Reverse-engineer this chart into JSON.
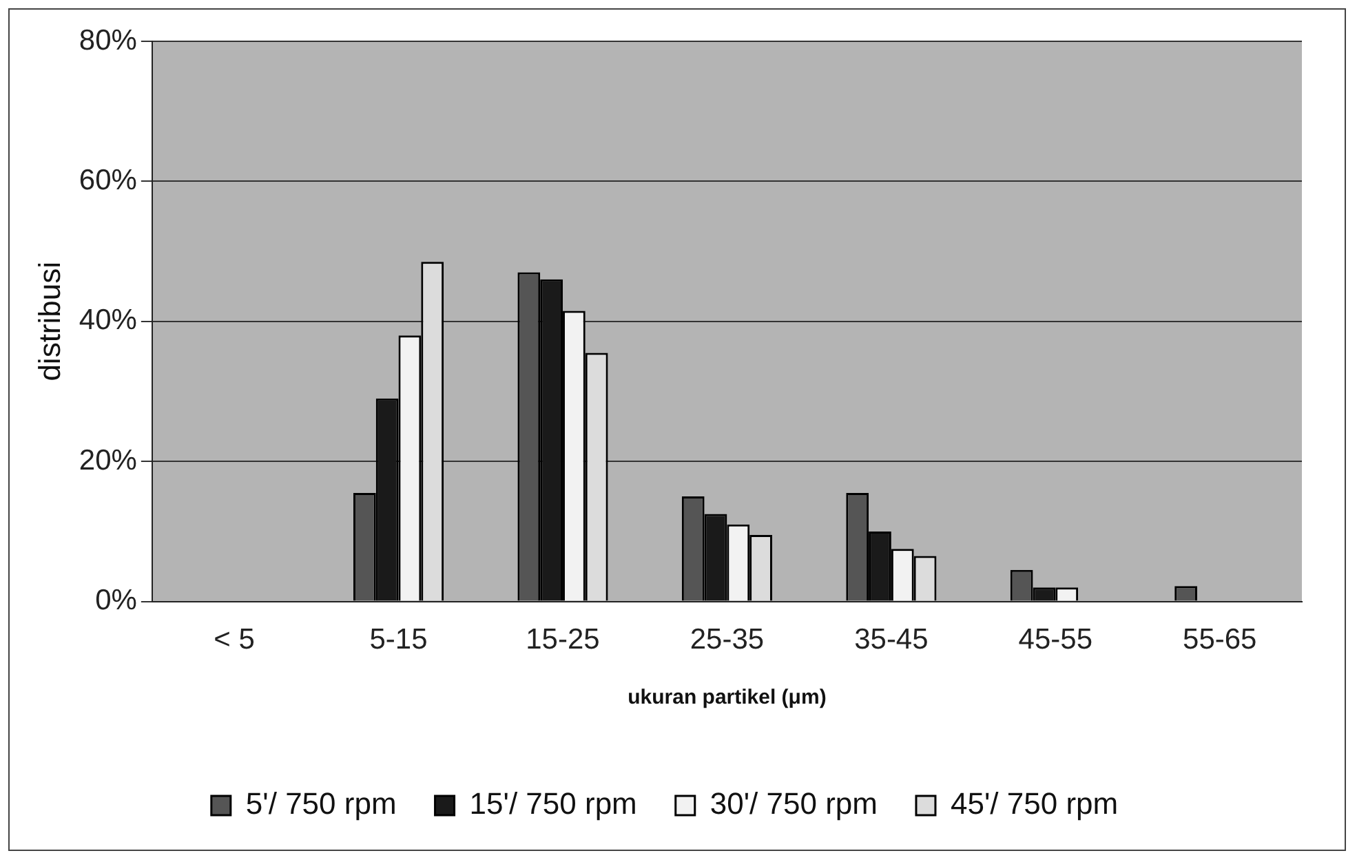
{
  "chart_data": {
    "type": "bar",
    "xlabel": "ukuran partikel (μm)",
    "ylabel": "distribusi",
    "categories": [
      "< 5",
      "5-15",
      "15-25",
      "25-35",
      "35-45",
      "45-55",
      "55-65"
    ],
    "series": [
      {
        "name": "5'/ 750 rpm",
        "color": "#555555",
        "values": [
          0,
          15.5,
          47,
          15,
          15.5,
          4.5,
          2.2
        ]
      },
      {
        "name": "15'/ 750 rpm",
        "color": "#1a1a1a",
        "values": [
          0,
          29,
          46,
          12.5,
          10,
          2,
          0
        ]
      },
      {
        "name": "30'/ 750 rpm",
        "color": "#f2f2f2",
        "values": [
          0,
          38,
          41.5,
          11,
          7.5,
          2,
          0
        ]
      },
      {
        "name": "45'/ 750 rpm",
        "color": "#dcdcdc",
        "values": [
          0,
          48.5,
          35.5,
          9.5,
          6.5,
          0,
          0
        ]
      }
    ],
    "ylim": [
      0,
      80
    ],
    "yticks": [
      {
        "value": 0,
        "label": "0%"
      },
      {
        "value": 20,
        "label": "20%"
      },
      {
        "value": 40,
        "label": "40%"
      },
      {
        "value": 60,
        "label": "60%"
      },
      {
        "value": 80,
        "label": "80%"
      }
    ],
    "grid": "y",
    "legend": "bottom"
  }
}
